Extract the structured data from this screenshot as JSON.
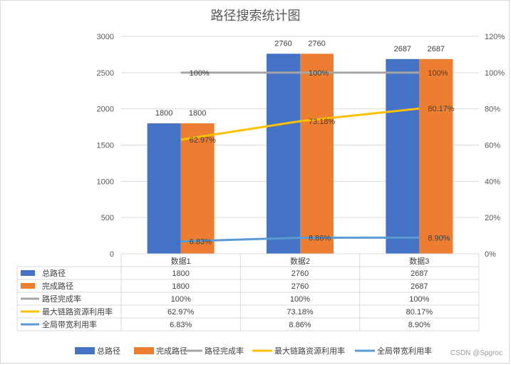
{
  "chart_data": {
    "type": "bar",
    "title": "路径搜索统计图",
    "categories": [
      "数据1",
      "数据2",
      "数据3"
    ],
    "series": [
      {
        "name": "总路径",
        "kind": "bar",
        "axis": "left",
        "color": "#4472C4",
        "values": [
          1800,
          2760,
          2687
        ],
        "labels": [
          "1800",
          "2760",
          "2687"
        ]
      },
      {
        "name": "完成路径",
        "kind": "bar",
        "axis": "left",
        "color": "#ED7D31",
        "values": [
          1800,
          2760,
          2687
        ],
        "labels": [
          "1800",
          "2760",
          "2687"
        ]
      },
      {
        "name": "路径完成率",
        "kind": "line",
        "axis": "right",
        "color": "#A5A5A5",
        "values": [
          100,
          100,
          100
        ],
        "labels": [
          "100%",
          "100%",
          "100%"
        ]
      },
      {
        "name": "最大链路资源利用率",
        "kind": "line",
        "axis": "right",
        "color": "#FFC000",
        "values": [
          62.97,
          73.18,
          80.17
        ],
        "labels": [
          "62.97%",
          "73.18%",
          "80.17%"
        ]
      },
      {
        "name": "全局带宽利用率",
        "kind": "line",
        "axis": "right",
        "color": "#5B9BD5",
        "values": [
          6.83,
          8.86,
          8.9
        ],
        "labels": [
          "6.83%",
          "8.86%",
          "8.90%"
        ]
      }
    ],
    "y_left": {
      "min": 0,
      "max": 3000,
      "step": 500,
      "ticks": [
        "0",
        "500",
        "1000",
        "1500",
        "2000",
        "2500",
        "3000"
      ]
    },
    "y_right": {
      "min": 0,
      "max": 120,
      "step": 20,
      "ticks": [
        "0%",
        "20%",
        "40%",
        "60%",
        "80%",
        "100%",
        "120%"
      ]
    },
    "gridlines": true,
    "legend": "bottom",
    "data_table": true
  },
  "watermark": "CSDN @Spgroc"
}
